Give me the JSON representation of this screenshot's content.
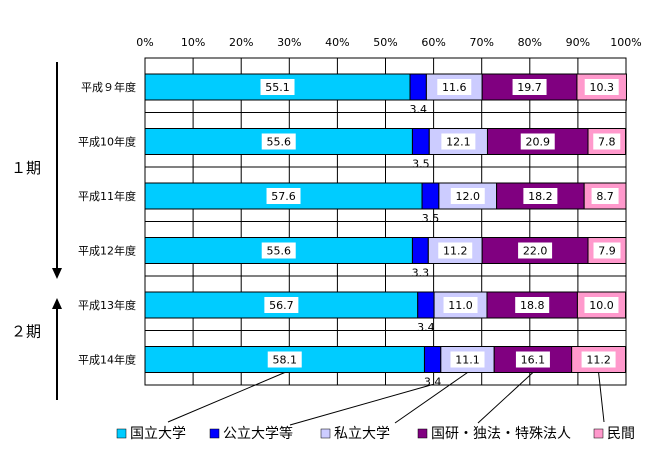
{
  "chart_data": {
    "type": "bar",
    "stacked": "percent",
    "orientation": "horizontal",
    "categories": [
      "平成９年度",
      "平成10年度",
      "平成11年度",
      "平成12年度",
      "平成13年度",
      "平成14年度"
    ],
    "series": [
      {
        "name": "国立大学",
        "color": "#00ccff",
        "values": [
          55.1,
          55.6,
          57.6,
          55.6,
          56.7,
          58.1
        ]
      },
      {
        "name": "公立大学等",
        "color": "#0000ff",
        "values": [
          3.4,
          3.5,
          3.5,
          3.3,
          3.4,
          3.4
        ]
      },
      {
        "name": "私立大学",
        "color": "#ccccff",
        "values": [
          11.6,
          12.1,
          12.0,
          11.2,
          11.0,
          11.1
        ]
      },
      {
        "name": "国研・独法・特殊法人",
        "color": "#800080",
        "values": [
          19.7,
          20.9,
          18.2,
          22.0,
          18.8,
          16.1
        ]
      },
      {
        "name": "民間",
        "color": "#ff99cc",
        "values": [
          10.3,
          7.8,
          8.7,
          7.9,
          10.0,
          11.2
        ]
      }
    ],
    "value_labels": [
      [
        "55.1",
        "3.4",
        "11.6",
        "19.7",
        "10.3"
      ],
      [
        "55.6",
        "3.5",
        "12.1",
        "20.9",
        "7.8"
      ],
      [
        "57.6",
        "3.5",
        "12.0",
        "18.2",
        "8.7"
      ],
      [
        "55.6",
        "3.3",
        "11.2",
        "22.0",
        "7.9"
      ],
      [
        "56.7",
        "3.4",
        "11.0",
        "18.8",
        "10.0"
      ],
      [
        "58.1",
        "3.4",
        "11.1",
        "16.1",
        "11.2"
      ]
    ],
    "x_ticks": [
      "0%",
      "10%",
      "20%",
      "30%",
      "40%",
      "50%",
      "60%",
      "70%",
      "80%",
      "90%",
      "100%"
    ],
    "xlim": [
      0,
      100
    ],
    "grid": true,
    "legend_position": "bottom",
    "periods": [
      {
        "label": "１期",
        "rows": [
          0,
          3
        ],
        "arrow": "down"
      },
      {
        "label": "２期",
        "rows": [
          4,
          5
        ],
        "arrow": "up"
      }
    ]
  }
}
